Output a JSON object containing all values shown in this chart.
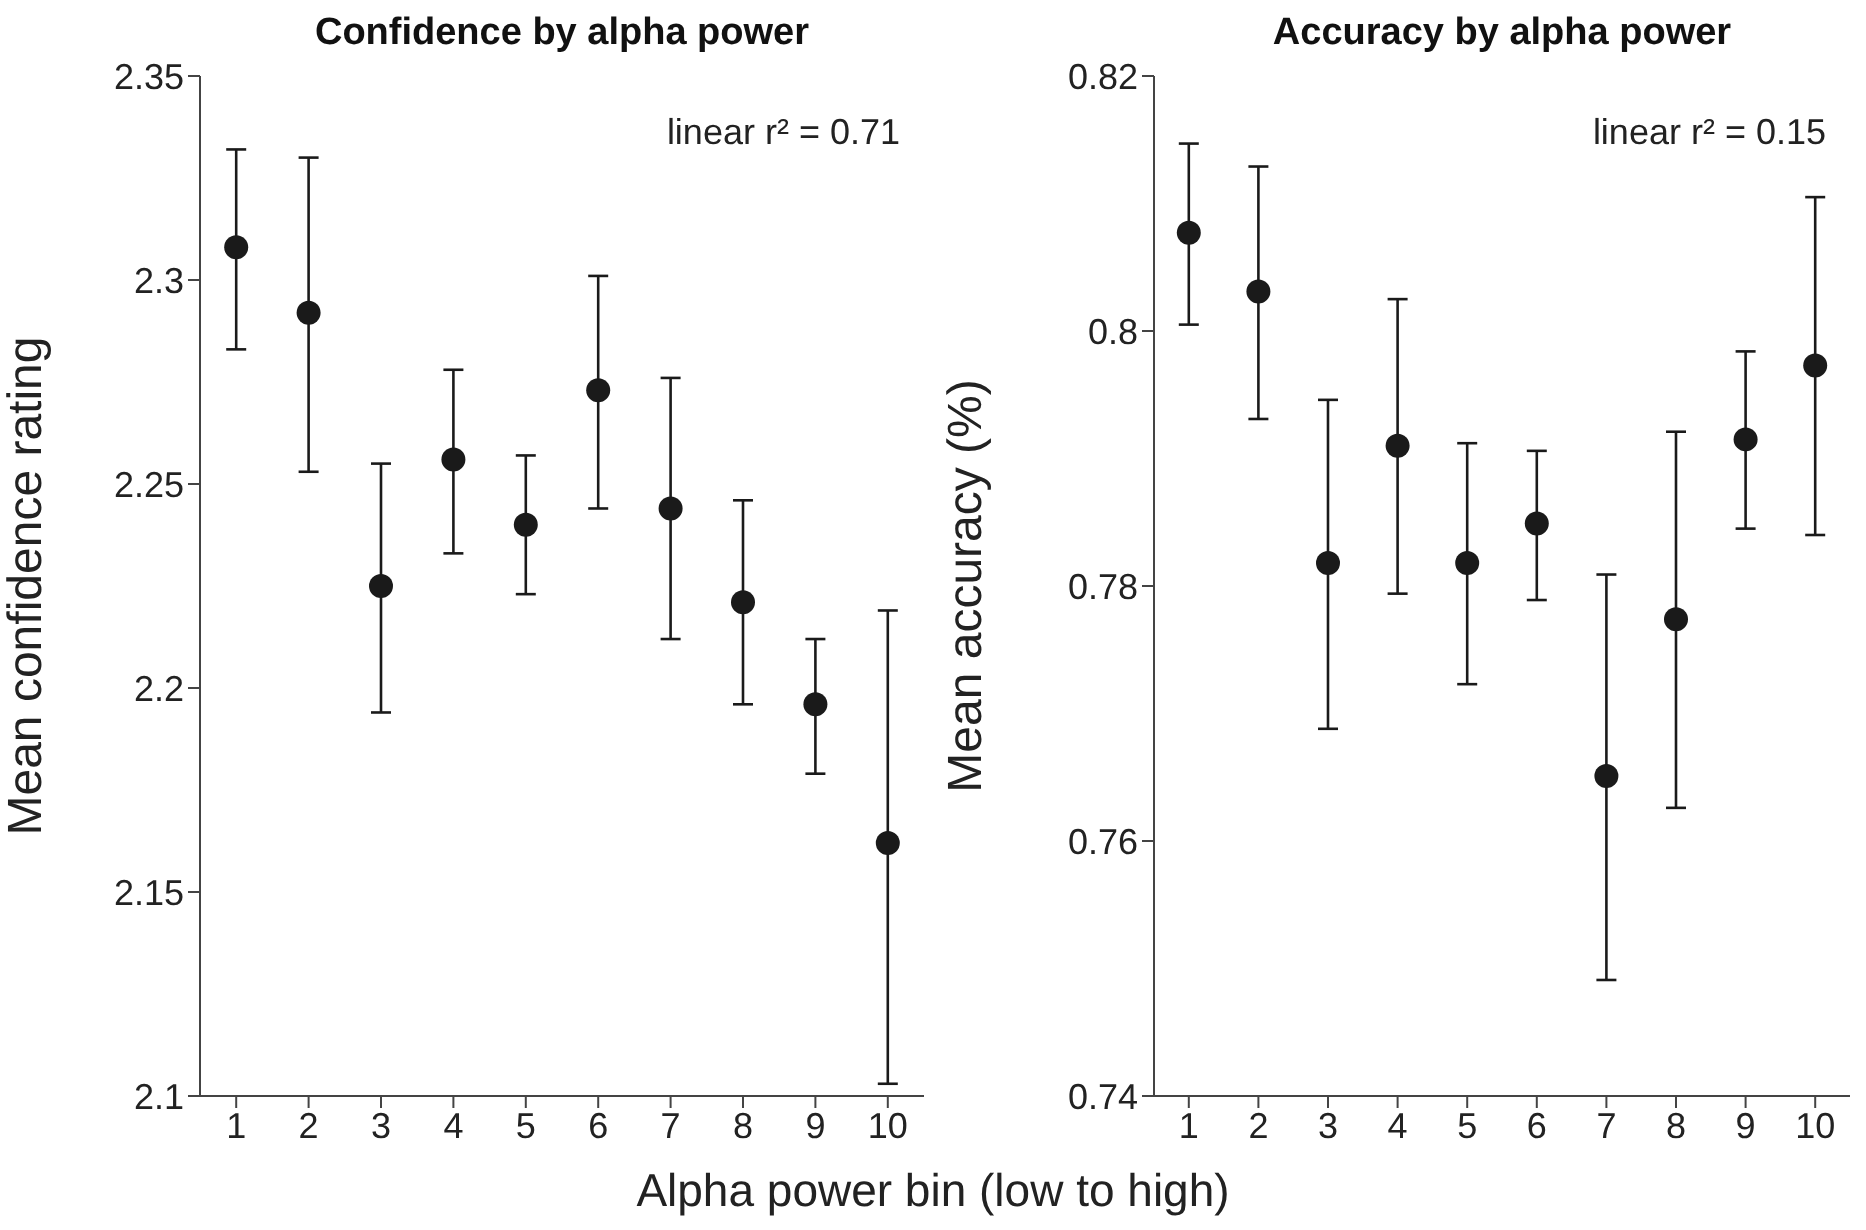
{
  "chart_data": [
    {
      "type": "scatter",
      "title": "Confidence by alpha power",
      "xlabel": "Alpha power bin (low to high)",
      "ylabel": "Mean confidence rating",
      "annotations": [
        "linear r² = 0.71"
      ],
      "x": [
        1,
        2,
        3,
        4,
        5,
        6,
        7,
        8,
        9,
        10
      ],
      "xlim": [
        0.5,
        10.5
      ],
      "xticks": [
        1,
        2,
        3,
        4,
        5,
        6,
        7,
        8,
        9,
        10
      ],
      "ylim": [
        2.1,
        2.35
      ],
      "yticks": [
        2.1,
        2.15,
        2.2,
        2.25,
        2.3,
        2.35
      ],
      "marker": "circle",
      "series": [
        {
          "color": "#1a1a1a",
          "values": [
            2.308,
            2.292,
            2.225,
            2.256,
            2.24,
            2.273,
            2.244,
            2.221,
            2.196,
            2.162
          ],
          "errors": [
            [
              2.283,
              2.332
            ],
            [
              2.253,
              2.33
            ],
            [
              2.194,
              2.255
            ],
            [
              2.233,
              2.278
            ],
            [
              2.223,
              2.257
            ],
            [
              2.244,
              2.301
            ],
            [
              2.212,
              2.276
            ],
            [
              2.196,
              2.246
            ],
            [
              2.179,
              2.212
            ],
            [
              2.103,
              2.219
            ]
          ]
        }
      ]
    },
    {
      "type": "scatter",
      "title": "Accuracy by alpha power",
      "ylabel": "Mean accuracy (%)",
      "annotations": [
        "linear r² = 0.15"
      ],
      "x": [
        1,
        2,
        3,
        4,
        5,
        6,
        7,
        8,
        9,
        10
      ],
      "xlim": [
        0.5,
        10.5
      ],
      "xticks": [
        1,
        2,
        3,
        4,
        5,
        6,
        7,
        8,
        9,
        10
      ],
      "ylim": [
        0.74,
        0.82
      ],
      "yticks": [
        0.74,
        0.76,
        0.78,
        0.8,
        0.82
      ],
      "marker": "circle",
      "series": [
        {
          "color": "#1a1a1a",
          "values": [
            0.8077,
            0.8031,
            0.7818,
            0.791,
            0.7818,
            0.7849,
            0.7651,
            0.7774,
            0.7915,
            0.7973
          ],
          "errors": [
            [
              0.8005,
              0.8147
            ],
            [
              0.7931,
              0.8129
            ],
            [
              0.7688,
              0.7946
            ],
            [
              0.7794,
              0.8025
            ],
            [
              0.7723,
              0.7912
            ],
            [
              0.7789,
              0.7906
            ],
            [
              0.7491,
              0.7809
            ],
            [
              0.7626,
              0.7921
            ],
            [
              0.7845,
              0.7984
            ],
            [
              0.784,
              0.8105
            ]
          ]
        }
      ]
    }
  ]
}
